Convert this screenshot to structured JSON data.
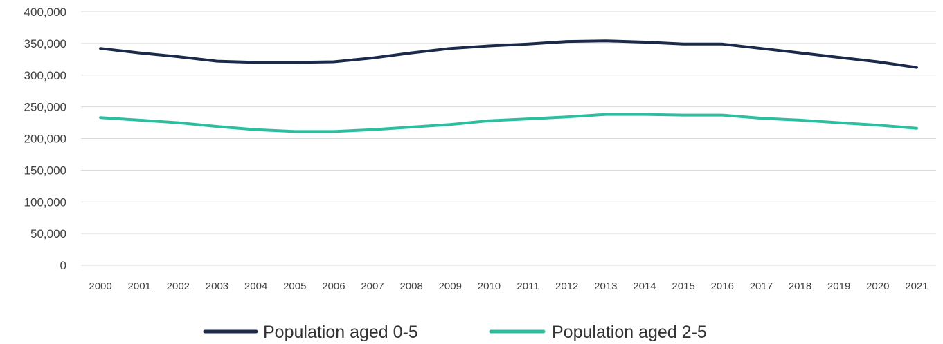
{
  "chart_data": {
    "type": "line",
    "title": "",
    "xlabel": "",
    "ylabel": "",
    "x": [
      "2000",
      "2001",
      "2002",
      "2003",
      "2004",
      "2005",
      "2006",
      "2007",
      "2008",
      "2009",
      "2010",
      "2011",
      "2012",
      "2013",
      "2014",
      "2015",
      "2016",
      "2017",
      "2018",
      "2019",
      "2020",
      "2021"
    ],
    "ylim": [
      0,
      400000
    ],
    "yticks": [
      "0",
      "50,000",
      "100,000",
      "150,000",
      "200,000",
      "250,000",
      "300,000",
      "350,000",
      "400,000"
    ],
    "ytick_values": [
      0,
      50000,
      100000,
      150000,
      200000,
      250000,
      300000,
      350000,
      400000
    ],
    "grid": true,
    "legend_position": "bottom",
    "series": [
      {
        "name": "Population aged 0-5",
        "color": "#1b2a4a",
        "values": [
          342000,
          335000,
          329000,
          322000,
          320000,
          320000,
          321000,
          327000,
          335000,
          342000,
          346000,
          349000,
          353000,
          354000,
          352000,
          349000,
          349000,
          342000,
          335000,
          328000,
          321000,
          312000
        ]
      },
      {
        "name": "Population aged 2-5",
        "color": "#2bbf9f",
        "values": [
          233000,
          229000,
          225000,
          219000,
          214000,
          211000,
          211000,
          214000,
          218000,
          222000,
          228000,
          231000,
          234000,
          238000,
          238000,
          237000,
          237000,
          232000,
          229000,
          225000,
          221000,
          216000
        ]
      }
    ]
  }
}
